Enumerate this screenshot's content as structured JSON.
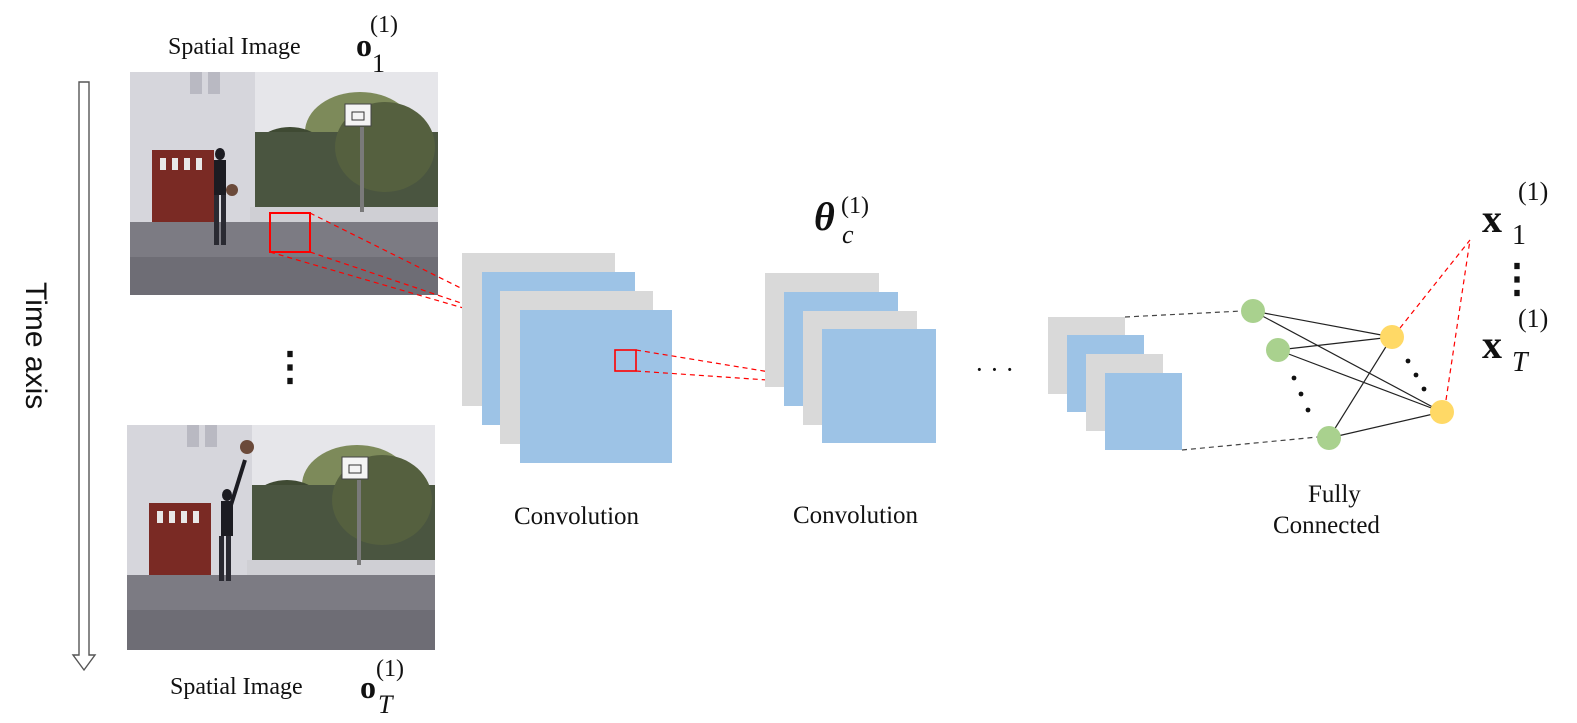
{
  "time_axis": {
    "label": "Time axis"
  },
  "frames": {
    "top": {
      "caption": "Spatial Image",
      "symbol": "o",
      "subscript": "1",
      "superscript": "(1)"
    },
    "bottom": {
      "caption": "Spatial Image",
      "symbol": "o",
      "subscript": "T",
      "superscript": "(1)"
    },
    "between": "⋮"
  },
  "conv": {
    "layer1_label": "Convolution",
    "layer2_label": "Convolution",
    "ellipsis": "· · ·",
    "param_symbol": "θ",
    "param_subscript": "c",
    "param_superscript": "(1)"
  },
  "fc": {
    "label_line1": "Fully",
    "label_line2": "Connected"
  },
  "outputs": {
    "symbol": "x",
    "top_subscript": "1",
    "bottom_subscript": "T",
    "superscript": "(1)",
    "between": "⋮"
  },
  "colors": {
    "feature_map_blue": "#9dc3e6",
    "feature_map_gray": "#d9d9d9",
    "node_green": "#a9d18e",
    "node_yellow": "#ffd966",
    "receptive_field_red": "#ff0000"
  },
  "icons": {
    "photo_top": "basketball-photo",
    "photo_bottom": "basketball-photo"
  }
}
